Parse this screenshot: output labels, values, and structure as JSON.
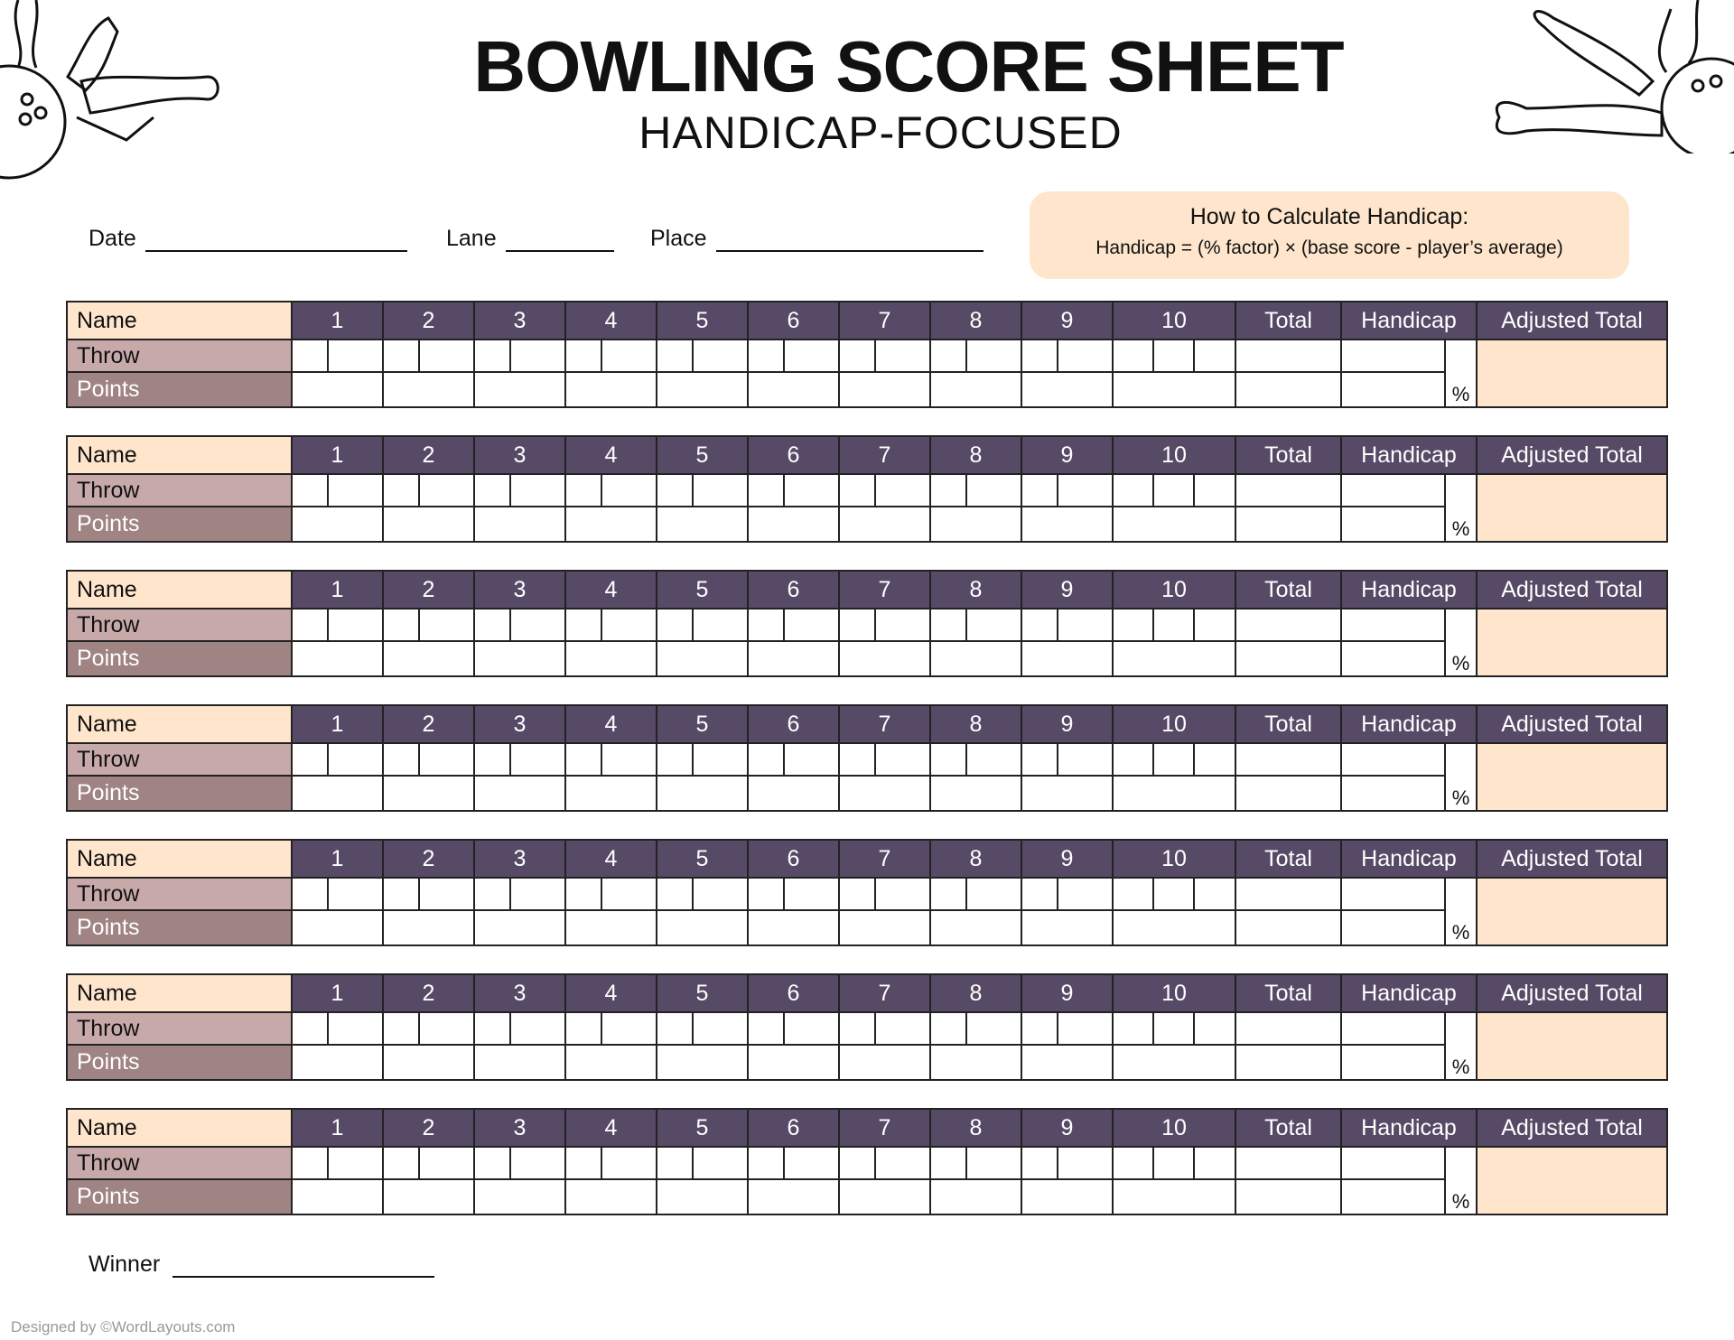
{
  "header": {
    "title": "BOWLING SCORE SHEET",
    "subtitle": "HANDICAP-FOCUSED"
  },
  "fields": {
    "date": "Date",
    "lane": "Lane",
    "place": "Place"
  },
  "info": {
    "heading": "How to Calculate Handicap:",
    "formula": "Handicap = (% factor) × (base score - player’s average)"
  },
  "table": {
    "row_labels": {
      "name": "Name",
      "throw": "Throw",
      "points": "Points"
    },
    "frames": [
      "1",
      "2",
      "3",
      "4",
      "5",
      "6",
      "7",
      "8",
      "9",
      "10"
    ],
    "total": "Total",
    "handicap": "Handicap",
    "adjusted": "Adjusted Total",
    "percent": "%",
    "player_count": 7
  },
  "winner": "Winner",
  "footer": "Designed by ©WordLayouts.com",
  "colors": {
    "header": "#574a66",
    "name": "#fee5cc",
    "throw": "#c8a9aa",
    "points": "#a08383",
    "adjusted": "#fee5cc"
  },
  "decorations": [
    "bowling-ball-and-pins-icon",
    "bowling-pins-and-ball-icon"
  ]
}
